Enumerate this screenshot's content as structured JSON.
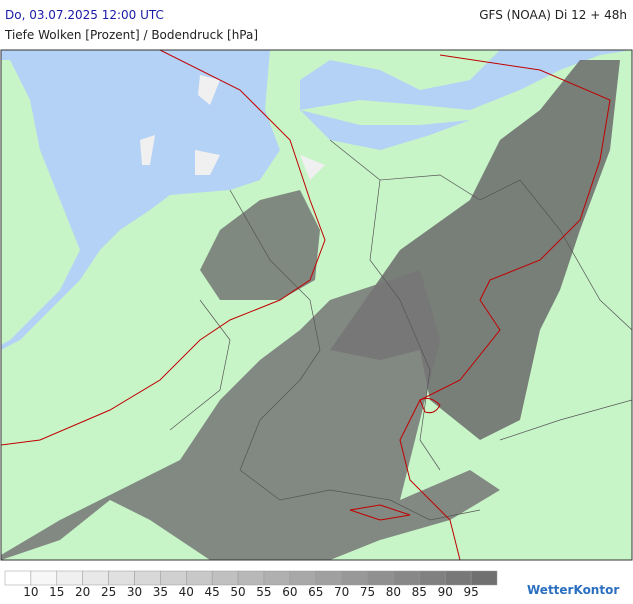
{
  "header": {
    "title": "Do, 03.07.2025 12:00 UTC",
    "model": "GFS (NOAA) Di 12 + 48h",
    "subtitle": "Tiefe Wolken [Prozent] / Bodendruck [hPa]"
  },
  "legend": {
    "labels": [
      10,
      15,
      20,
      25,
      30,
      35,
      40,
      45,
      50,
      55,
      60,
      65,
      70,
      75,
      80,
      85,
      90,
      95
    ],
    "colors": [
      "#ffffff",
      "#f7f7f7",
      "#f0f0f0",
      "#e8e8e8",
      "#e0e0e0",
      "#d8d8d8",
      "#d0d0d0",
      "#c8c8c8",
      "#c0c0c0",
      "#b8b8b8",
      "#b0b0b0",
      "#a8a8a8",
      "#a0a0a0",
      "#989898",
      "#909090",
      "#888888",
      "#808080",
      "#787878",
      "#707070"
    ]
  },
  "logo": "WetterKontor"
}
